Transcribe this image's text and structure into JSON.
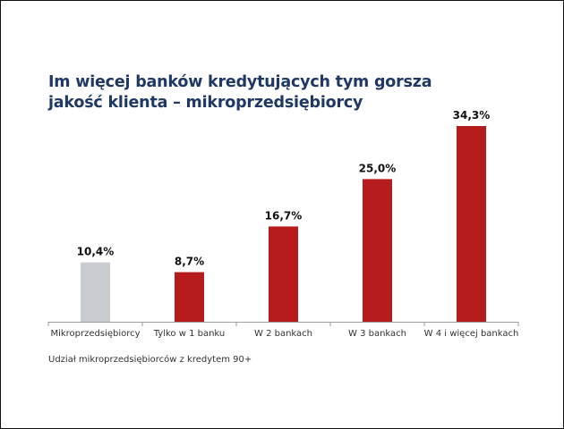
{
  "title": {
    "line1": "Im więcej banków kredytujących tym gorsza",
    "line2": "jakość klienta – mikroprzedsiębiorcy"
  },
  "footnote": "Udział mikroprzedsiębiorców z kredytem 90+",
  "colors": {
    "title": "#1f3864",
    "bar_highlight": "#b71c1c",
    "bar_baseline": "#c8ccd0",
    "axis": "#9e9e9e"
  },
  "chart_data": {
    "type": "bar",
    "categories": [
      "Mikroprzedsiębiorcy",
      "Tylko w 1 banku",
      "W 2 bankach",
      "W 3 bankach",
      "W 4 i więcej bankach"
    ],
    "values": [
      10.4,
      8.7,
      16.7,
      25.0,
      34.3
    ],
    "value_labels": [
      "10,4%",
      "8,7%",
      "16,7%",
      "25,0%",
      "34,3%"
    ],
    "bar_colors": [
      "#c8ccd0",
      "#b71c1c",
      "#b71c1c",
      "#b71c1c",
      "#b71c1c"
    ],
    "ylim": [
      0,
      34.3
    ],
    "grid": false,
    "legend": "none"
  }
}
